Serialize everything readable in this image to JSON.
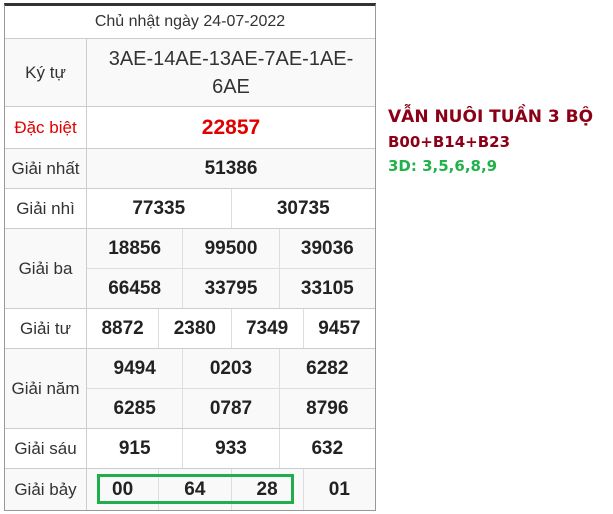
{
  "title": "Chủ nhật ngày 24-07-2022",
  "rows": [
    {
      "label": "Ký tự",
      "values": [
        [
          "3AE-14AE-13AE-7AE-1AE-6AE"
        ]
      ]
    },
    {
      "label": "Đặc biệt",
      "values": [
        [
          "22857"
        ]
      ]
    },
    {
      "label": "Giải nhất",
      "values": [
        [
          "51386"
        ]
      ]
    },
    {
      "label": "Giải nhì",
      "values": [
        [
          "77335",
          "30735"
        ]
      ]
    },
    {
      "label": "Giải ba",
      "values": [
        [
          "18856",
          "99500",
          "39036"
        ],
        [
          "66458",
          "33795",
          "33105"
        ]
      ]
    },
    {
      "label": "Giải tư",
      "values": [
        [
          "8872",
          "2380",
          "7349",
          "9457"
        ]
      ]
    },
    {
      "label": "Giải năm",
      "values": [
        [
          "9494",
          "0203",
          "6282"
        ],
        [
          "6285",
          "0787",
          "8796"
        ]
      ]
    },
    {
      "label": "Giải sáu",
      "values": [
        [
          "915",
          "933",
          "632"
        ]
      ]
    },
    {
      "label": "Giải bảy",
      "values": [
        [
          "00",
          "64",
          "28",
          "01"
        ]
      ]
    }
  ],
  "side": {
    "line1": "VẪN NUÔI TUẦN 3 BỘ",
    "line2": "B00+B14+B23",
    "line3": "3D: 3,5,6,8,9"
  },
  "colors": {
    "special": "#e00000",
    "side_dark": "#8b0016",
    "side_green": "#21b24b",
    "highlight_box": "#1fae4b"
  }
}
